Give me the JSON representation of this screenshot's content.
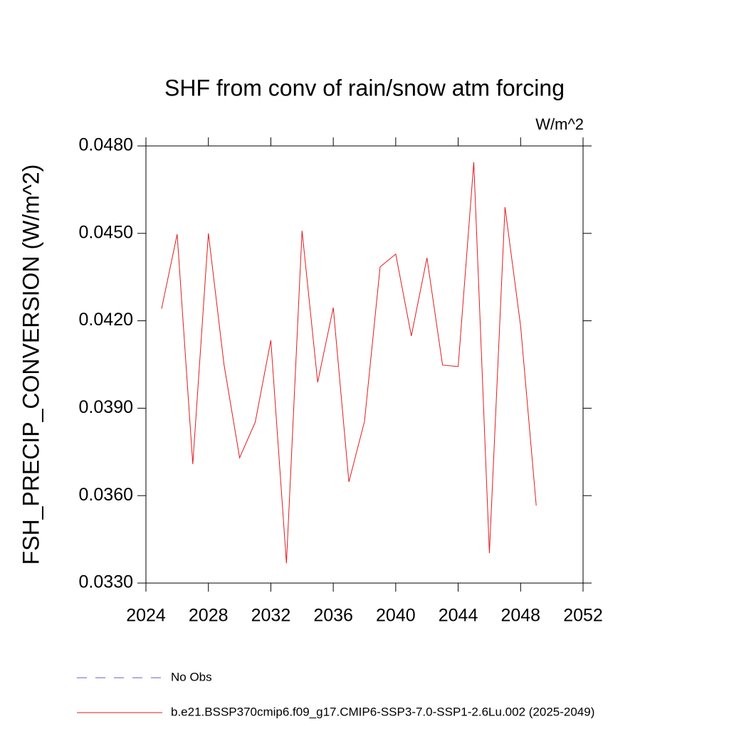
{
  "chart_data": {
    "type": "line",
    "title": "SHF from conv of rain/snow atm forcing",
    "units": "W/m^2",
    "y_label": "FSH_PRECIP_CONVERSION  (W/m^2)",
    "x": [
      2025,
      2026,
      2027,
      2028,
      2029,
      2030,
      2031,
      2032,
      2033,
      2034,
      2035,
      2036,
      2037,
      2038,
      2039,
      2040,
      2041,
      2042,
      2043,
      2044,
      2045,
      2046,
      2047,
      2048,
      2049
    ],
    "series": [
      {
        "name": "No Obs",
        "color": "#6a5acd",
        "dashed": true,
        "values": [
          null,
          null,
          null,
          null,
          null,
          null,
          null,
          null,
          null,
          null,
          null,
          null,
          null,
          null,
          null,
          null,
          null,
          null,
          null,
          null,
          null,
          null,
          null,
          null,
          null
        ]
      },
      {
        "name": "b.e21.BSSP370cmip6.f09_g17.CMIP6-SSP3-7.0-SSP1-2.6Lu.002 (2025-2049)",
        "color": "#e41a1c",
        "dashed": false,
        "values": [
          0.04241,
          0.04497,
          0.03708,
          0.045,
          0.0405,
          0.0373,
          0.03852,
          0.04133,
          0.03368,
          0.04509,
          0.03989,
          0.04245,
          0.03647,
          0.03855,
          0.04385,
          0.04429,
          0.04148,
          0.04416,
          0.04048,
          0.04043,
          0.04744,
          0.03403,
          0.0459,
          0.04182,
          0.03566
        ]
      }
    ],
    "xlim": [
      2024,
      2052
    ],
    "xticks": [
      2024,
      2028,
      2032,
      2036,
      2040,
      2044,
      2048,
      2052
    ],
    "ylim": [
      0.033,
      0.048
    ],
    "yticks": [
      {
        "value": 0.033,
        "label": "0.0330"
      },
      {
        "value": 0.036,
        "label": "0.0360"
      },
      {
        "value": 0.039,
        "label": "0.0390"
      },
      {
        "value": 0.042,
        "label": "0.0420"
      },
      {
        "value": 0.045,
        "label": "0.0450"
      },
      {
        "value": 0.048,
        "label": "0.0480"
      }
    ]
  }
}
